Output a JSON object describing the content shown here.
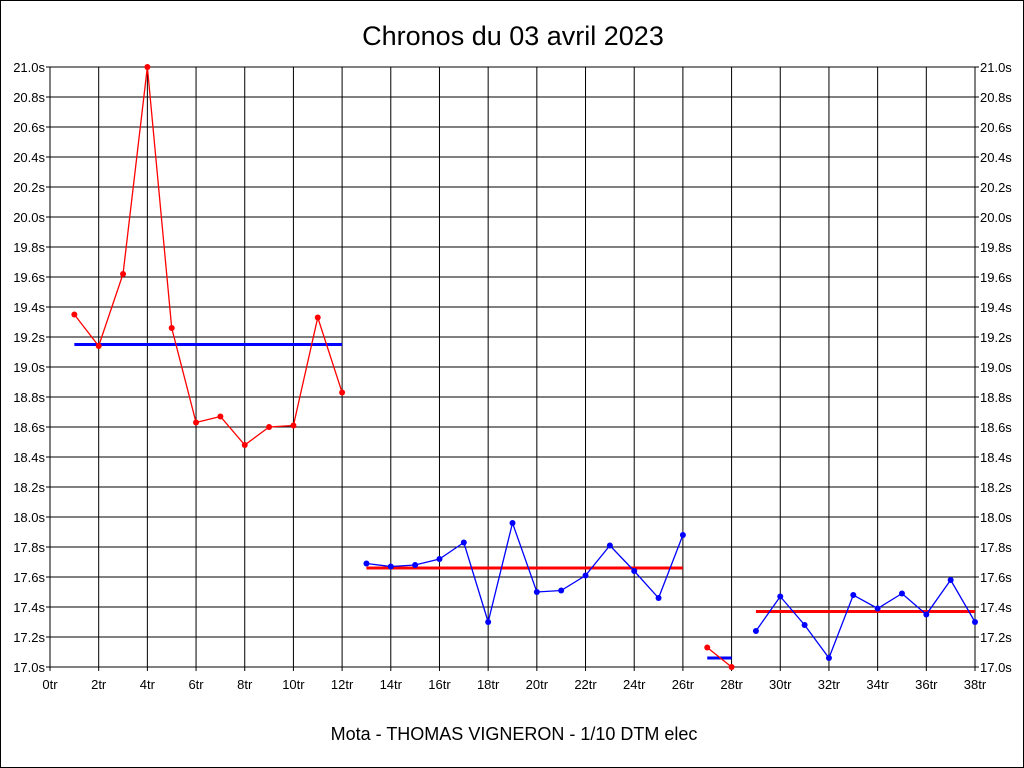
{
  "chart_data": {
    "type": "line",
    "title": "Chronos du 03 avril 2023",
    "subtitle": "Mota - THOMAS VIGNERON - 1/10 DTM elec",
    "xlim": [
      0,
      38
    ],
    "ylim": [
      17.0,
      21.0
    ],
    "x_ticks": [
      "0tr",
      "2tr",
      "4tr",
      "6tr",
      "8tr",
      "10tr",
      "12tr",
      "14tr",
      "16tr",
      "18tr",
      "20tr",
      "22tr",
      "24tr",
      "26tr",
      "28tr",
      "30tr",
      "32tr",
      "34tr",
      "36tr",
      "38tr"
    ],
    "y_ticks": [
      "17.0s",
      "17.2s",
      "17.4s",
      "17.6s",
      "17.8s",
      "18.0s",
      "18.2s",
      "18.4s",
      "18.6s",
      "18.8s",
      "19.0s",
      "19.2s",
      "19.4s",
      "19.6s",
      "19.8s",
      "20.0s",
      "20.2s",
      "20.4s",
      "20.6s",
      "20.8s",
      "21.0s"
    ],
    "grid": true,
    "series": [
      {
        "color": "#ff0000",
        "x": [
          1,
          2,
          3,
          4,
          5,
          6,
          7,
          8,
          9,
          10,
          11,
          12
        ],
        "values": [
          19.35,
          19.14,
          19.62,
          21.0,
          19.26,
          18.63,
          18.67,
          18.48,
          18.6,
          18.61,
          19.33,
          18.83
        ]
      },
      {
        "color": "#0000ff",
        "x": [
          13,
          14,
          15,
          16,
          17,
          18,
          19,
          20,
          21,
          22,
          23,
          24,
          25,
          26
        ],
        "values": [
          17.69,
          17.67,
          17.68,
          17.72,
          17.83,
          17.3,
          17.96,
          17.5,
          17.51,
          17.61,
          17.81,
          17.64,
          17.46,
          17.88
        ]
      },
      {
        "color": "#ff0000",
        "x": [
          27,
          28
        ],
        "values": [
          17.13,
          17.0
        ]
      },
      {
        "color": "#0000ff",
        "x": [
          29,
          30,
          31,
          32,
          33,
          34,
          35,
          36,
          37,
          38
        ],
        "values": [
          17.24,
          17.47,
          17.28,
          17.06,
          17.48,
          17.39,
          17.49,
          17.35,
          17.58,
          17.3
        ]
      }
    ],
    "average_lines": [
      {
        "color": "#0000ff",
        "x_start": 1,
        "x_end": 12,
        "value": 19.15
      },
      {
        "color": "#ff0000",
        "x_start": 13,
        "x_end": 26,
        "value": 17.66
      },
      {
        "color": "#0000ff",
        "x_start": 27,
        "x_end": 28,
        "value": 17.06
      },
      {
        "color": "#ff0000",
        "x_start": 29,
        "x_end": 38,
        "value": 17.37
      }
    ]
  }
}
